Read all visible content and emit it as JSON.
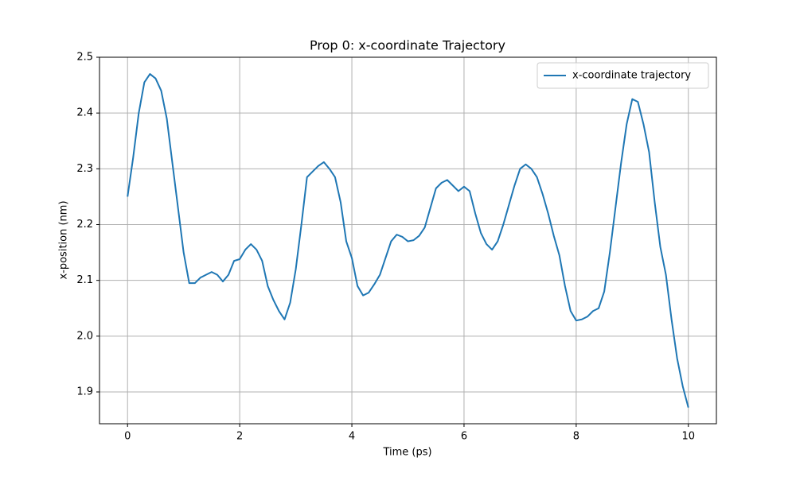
{
  "chart_data": {
    "type": "line",
    "title": "Prop 0: x-coordinate Trajectory",
    "x_label": "Time (ps)",
    "y_label": "x-position (nm)",
    "x": [
      0,
      0.1,
      0.2,
      0.3,
      0.4,
      0.5,
      0.6,
      0.7,
      0.8,
      0.9,
      1.0,
      1.1,
      1.2,
      1.3,
      1.4,
      1.5,
      1.6,
      1.7,
      1.8,
      1.9,
      2.0,
      2.1,
      2.2,
      2.3,
      2.4,
      2.5,
      2.6,
      2.7,
      2.8,
      2.9,
      3.0,
      3.1,
      3.2,
      3.3,
      3.4,
      3.5,
      3.6,
      3.7,
      3.8,
      3.9,
      4.0,
      4.1,
      4.2,
      4.3,
      4.4,
      4.5,
      4.6,
      4.7,
      4.8,
      4.9,
      5.0,
      5.1,
      5.2,
      5.3,
      5.4,
      5.5,
      5.6,
      5.7,
      5.8,
      5.9,
      6.0,
      6.1,
      6.2,
      6.3,
      6.4,
      6.5,
      6.6,
      6.7,
      6.8,
      6.9,
      7.0,
      7.1,
      7.2,
      7.3,
      7.4,
      7.5,
      7.6,
      7.7,
      7.8,
      7.9,
      8.0,
      8.1,
      8.2,
      8.3,
      8.4,
      8.5,
      8.6,
      8.7,
      8.8,
      8.9,
      9.0,
      9.1,
      9.2,
      9.3,
      9.4,
      9.5,
      9.6,
      9.7,
      9.8,
      9.9,
      10.0
    ],
    "series": [
      {
        "name": "x-coordinate trajectory",
        "color": "#1f77b4",
        "values": [
          2.25,
          2.32,
          2.4,
          2.455,
          2.47,
          2.462,
          2.44,
          2.39,
          2.31,
          2.23,
          2.15,
          2.095,
          2.095,
          2.105,
          2.11,
          2.115,
          2.11,
          2.098,
          2.11,
          2.135,
          2.138,
          2.155,
          2.165,
          2.155,
          2.135,
          2.09,
          2.065,
          2.045,
          2.03,
          2.06,
          2.12,
          2.2,
          2.285,
          2.295,
          2.305,
          2.312,
          2.3,
          2.285,
          2.24,
          2.17,
          2.14,
          2.09,
          2.073,
          2.078,
          2.093,
          2.11,
          2.14,
          2.17,
          2.182,
          2.178,
          2.17,
          2.172,
          2.18,
          2.195,
          2.23,
          2.265,
          2.275,
          2.28,
          2.27,
          2.26,
          2.268,
          2.26,
          2.22,
          2.185,
          2.165,
          2.155,
          2.17,
          2.2,
          2.235,
          2.27,
          2.3,
          2.308,
          2.3,
          2.285,
          2.255,
          2.22,
          2.18,
          2.145,
          2.09,
          2.045,
          2.028,
          2.03,
          2.035,
          2.045,
          2.05,
          2.08,
          2.15,
          2.23,
          2.31,
          2.38,
          2.425,
          2.42,
          2.38,
          2.33,
          2.24,
          2.16,
          2.11,
          2.03,
          1.96,
          1.91,
          1.872
        ]
      }
    ],
    "xlim": [
      -0.5,
      10.5
    ],
    "ylim": [
      1.843,
      2.5
    ],
    "xticks": [
      0,
      2,
      4,
      6,
      8,
      10
    ],
    "yticks": [
      1.9,
      {
        "value": 2,
        "label": "2.0"
      },
      2.1,
      2.2,
      2.3,
      2.4,
      2.5
    ],
    "grid": true,
    "legend": "upper right"
  }
}
